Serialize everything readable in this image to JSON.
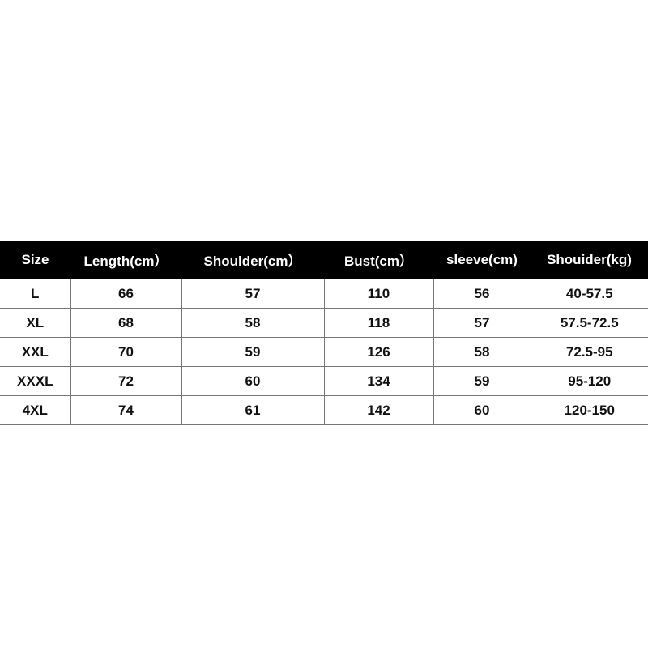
{
  "table": {
    "headers": [
      "Size",
      "Length(cm）",
      "Shoulder(cm）",
      "Bust(cm）",
      "sleeve(cm)",
      "Shouider(kg)"
    ],
    "rows": [
      [
        "L",
        "66",
        "57",
        "110",
        "56",
        "40-57.5"
      ],
      [
        "XL",
        "68",
        "58",
        "118",
        "57",
        "57.5-72.5"
      ],
      [
        "XXL",
        "70",
        "59",
        "126",
        "58",
        "72.5-95"
      ],
      [
        "XXXL",
        "72",
        "60",
        "134",
        "59",
        "95-120"
      ],
      [
        "4XL",
        "74",
        "61",
        "142",
        "60",
        "120-150"
      ]
    ]
  }
}
